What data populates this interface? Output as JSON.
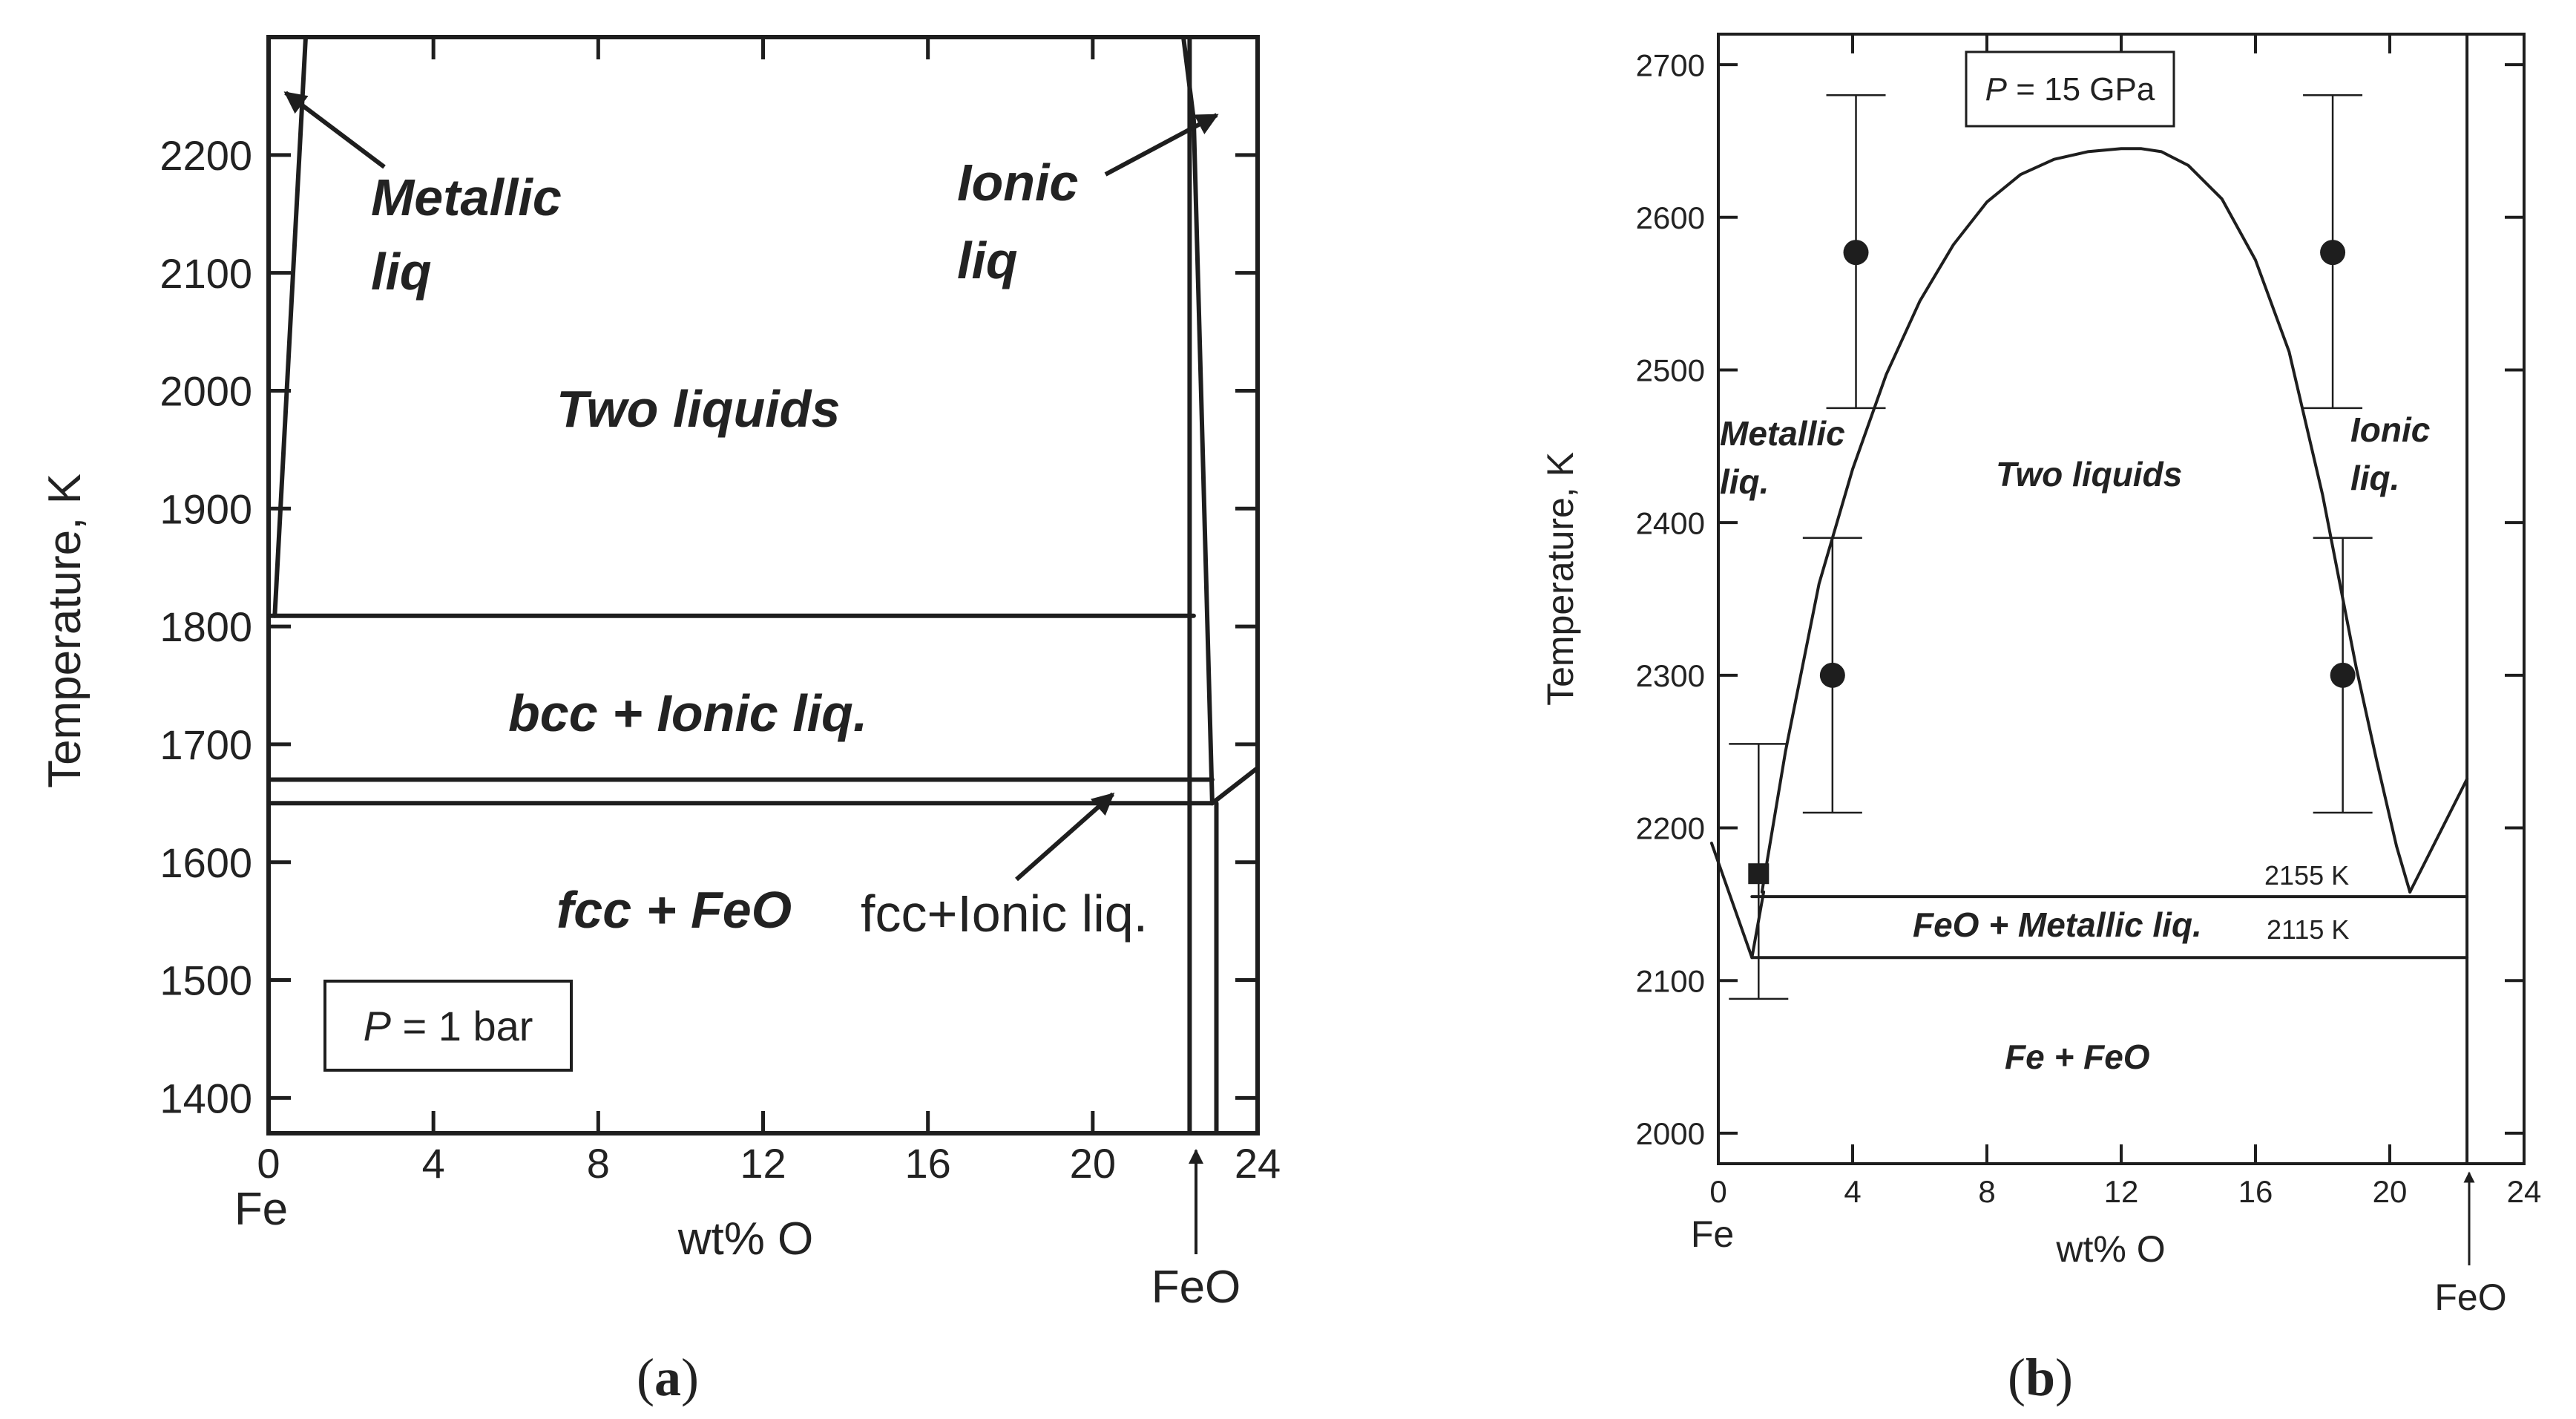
{
  "colors": {
    "line": "#1e1e1e",
    "text": "#222222",
    "background": "#ffffff"
  },
  "panels": {
    "a": {
      "caption_open": "(",
      "caption_letter": "a",
      "caption_close": ")",
      "ylabel": "Temperature, K",
      "xlabel": "wt% O",
      "left_end_label": "Fe",
      "right_end_label": "FeO",
      "pressure_italic": "P",
      "pressure_value": " = 1 bar",
      "yticks": [
        "1400",
        "1500",
        "1600",
        "1700",
        "1800",
        "1900",
        "2000",
        "2100",
        "2200"
      ],
      "xticks": [
        "0",
        "4",
        "8",
        "12",
        "16",
        "20",
        "24"
      ],
      "regions": {
        "metallic_1": "Metallic",
        "metallic_2": "liq",
        "ionic_1": "Ionic",
        "ionic_2": "liq",
        "two_liquids": "Two liquids",
        "bcc_ionic": "bcc + Ionic liq.",
        "fcc_feo": "fcc + FeO",
        "fcc_ionic": "fcc+Ionic liq."
      }
    },
    "b": {
      "caption_open": "(",
      "caption_letter": "b",
      "caption_close": ")",
      "ylabel": "Temperature, K",
      "xlabel": "wt% O",
      "left_end_label": "Fe",
      "right_end_label": "FeO",
      "pressure_italic": "P",
      "pressure_value": " = 15 GPa",
      "yticks": [
        "2000",
        "2100",
        "2200",
        "2300",
        "2400",
        "2500",
        "2600",
        "2700"
      ],
      "xticks": [
        "0",
        "4",
        "8",
        "12",
        "16",
        "20",
        "24"
      ],
      "regions": {
        "metallic_1": "Metallic",
        "metallic_2": "liq.",
        "ionic_1": "Ionic",
        "ionic_2": "liq.",
        "two_liquids": "Two liquids",
        "feo_metallic": "FeO + Metallic liq.",
        "fe_feo": "Fe + FeO"
      },
      "isotherm_labels": {
        "upper": "2155 K",
        "lower": "2115 K"
      }
    }
  },
  "chart_data": [
    {
      "type": "line",
      "panel": "a",
      "title": "",
      "xlabel": "wt% O",
      "ylabel": "Temperature, K",
      "xlim": [
        0,
        24
      ],
      "ylim": [
        1370,
        2300
      ],
      "x_ticks": [
        0,
        4,
        8,
        12,
        16,
        20,
        24
      ],
      "y_ticks": [
        1400,
        1500,
        1600,
        1700,
        1800,
        1900,
        2000,
        2100,
        2200
      ],
      "series": [
        {
          "x": [
            0.15,
            0.9
          ],
          "y": [
            1809,
            2300
          ]
        },
        {
          "x": [
            22.2,
            22.45,
            22.9
          ],
          "y": [
            2300,
            2230,
            1650
          ]
        },
        {
          "x": [
            0,
            22.45
          ],
          "y": [
            1809,
            1809
          ]
        },
        {
          "x": [
            0,
            22.9
          ],
          "y": [
            1670,
            1670
          ]
        },
        {
          "x": [
            0,
            22.9
          ],
          "y": [
            1650,
            1650
          ]
        },
        {
          "x": [
            22.9,
            24
          ],
          "y": [
            1650,
            1680
          ]
        },
        {
          "x": [
            22.35,
            22.35
          ],
          "y": [
            1370,
            2300
          ]
        },
        {
          "x": [
            23.0,
            23.0
          ],
          "y": [
            1370,
            1650
          ]
        }
      ],
      "feo_composition_wt_pct_O": 22.3
    },
    {
      "type": "line",
      "panel": "b",
      "title": "",
      "xlabel": "wt% O",
      "ylabel": "Temperature, K",
      "xlim": [
        0,
        24
      ],
      "ylim": [
        1980,
        2720
      ],
      "x_ticks": [
        0,
        4,
        8,
        12,
        16,
        20,
        24
      ],
      "y_ticks": [
        2000,
        2100,
        2200,
        2300,
        2400,
        2500,
        2600,
        2700
      ],
      "series": [
        {
          "x": [
            1.3,
            2.0,
            3.0,
            4.0,
            5.0,
            6.0,
            7.0,
            8.0,
            9.0,
            10.0,
            11.0,
            12.0,
            12.6,
            13.2,
            14.0,
            15.0,
            16.0,
            17.0,
            18.0,
            19.0,
            19.6,
            20.2,
            20.6
          ],
          "y": [
            2158,
            2250,
            2360,
            2435,
            2497,
            2545,
            2582,
            2610,
            2628,
            2638,
            2643,
            2645,
            2645,
            2643,
            2634,
            2612,
            2572,
            2512,
            2418,
            2305,
            2245,
            2188,
            2158
          ]
        },
        {
          "x": [
            -0.2,
            1.0,
            1.35
          ],
          "y": [
            2190,
            2115,
            2158
          ]
        },
        {
          "x": [
            20.6,
            22.3
          ],
          "y": [
            2158,
            2232
          ]
        },
        {
          "x": [
            1.0,
            22.3
          ],
          "y": [
            2155,
            2155
          ]
        },
        {
          "x": [
            1.0,
            22.3
          ],
          "y": [
            2115,
            2115
          ]
        },
        {
          "x": [
            22.3,
            22.3
          ],
          "y": [
            1980,
            2720
          ]
        }
      ],
      "points": [
        {
          "x": 1.2,
          "y": 2170,
          "yerr": [
            2088,
            2255
          ],
          "marker": "square"
        },
        {
          "x": 3.4,
          "y": 2300,
          "yerr": [
            2210,
            2390
          ],
          "marker": "circle"
        },
        {
          "x": 4.1,
          "y": 2577,
          "yerr": [
            2475,
            2680
          ],
          "marker": "circle"
        },
        {
          "x": 18.3,
          "y": 2577,
          "yerr": [
            2475,
            2680
          ],
          "marker": "circle"
        },
        {
          "x": 18.6,
          "y": 2300,
          "yerr": [
            2210,
            2390
          ],
          "marker": "circle"
        }
      ],
      "feo_composition_wt_pct_O": 22.3
    }
  ]
}
